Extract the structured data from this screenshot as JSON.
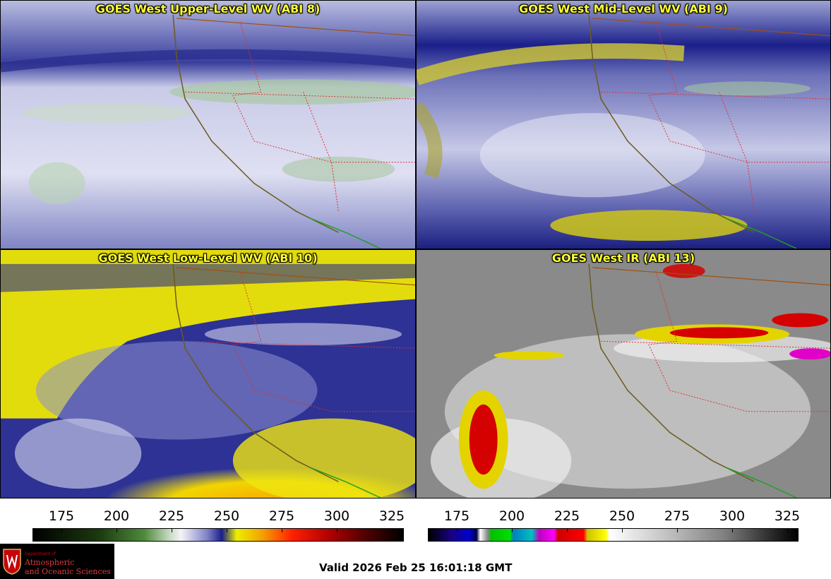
{
  "panels": [
    {
      "title": "GOES West Upper-Level WV (ABI 8)"
    },
    {
      "title": "GOES West Mid-Level WV (ABI 9)"
    },
    {
      "title": "GOES West Low-Level WV (ABI 10)"
    },
    {
      "title": "GOES West IR (ABI 13)"
    }
  ],
  "wv_scale": {
    "ticks": [
      "175",
      "200",
      "225",
      "250",
      "275",
      "300",
      "325"
    ]
  },
  "ir_scale": {
    "ticks": [
      "175",
      "200",
      "225",
      "250",
      "275",
      "300",
      "325"
    ]
  },
  "logo": {
    "dept": "Department of",
    "name_line1": "Atmospheric",
    "name_line2": "and Oceanic Sciences"
  },
  "valid_time": "Valid 2026 Feb 25 16:01:18 GMT"
}
